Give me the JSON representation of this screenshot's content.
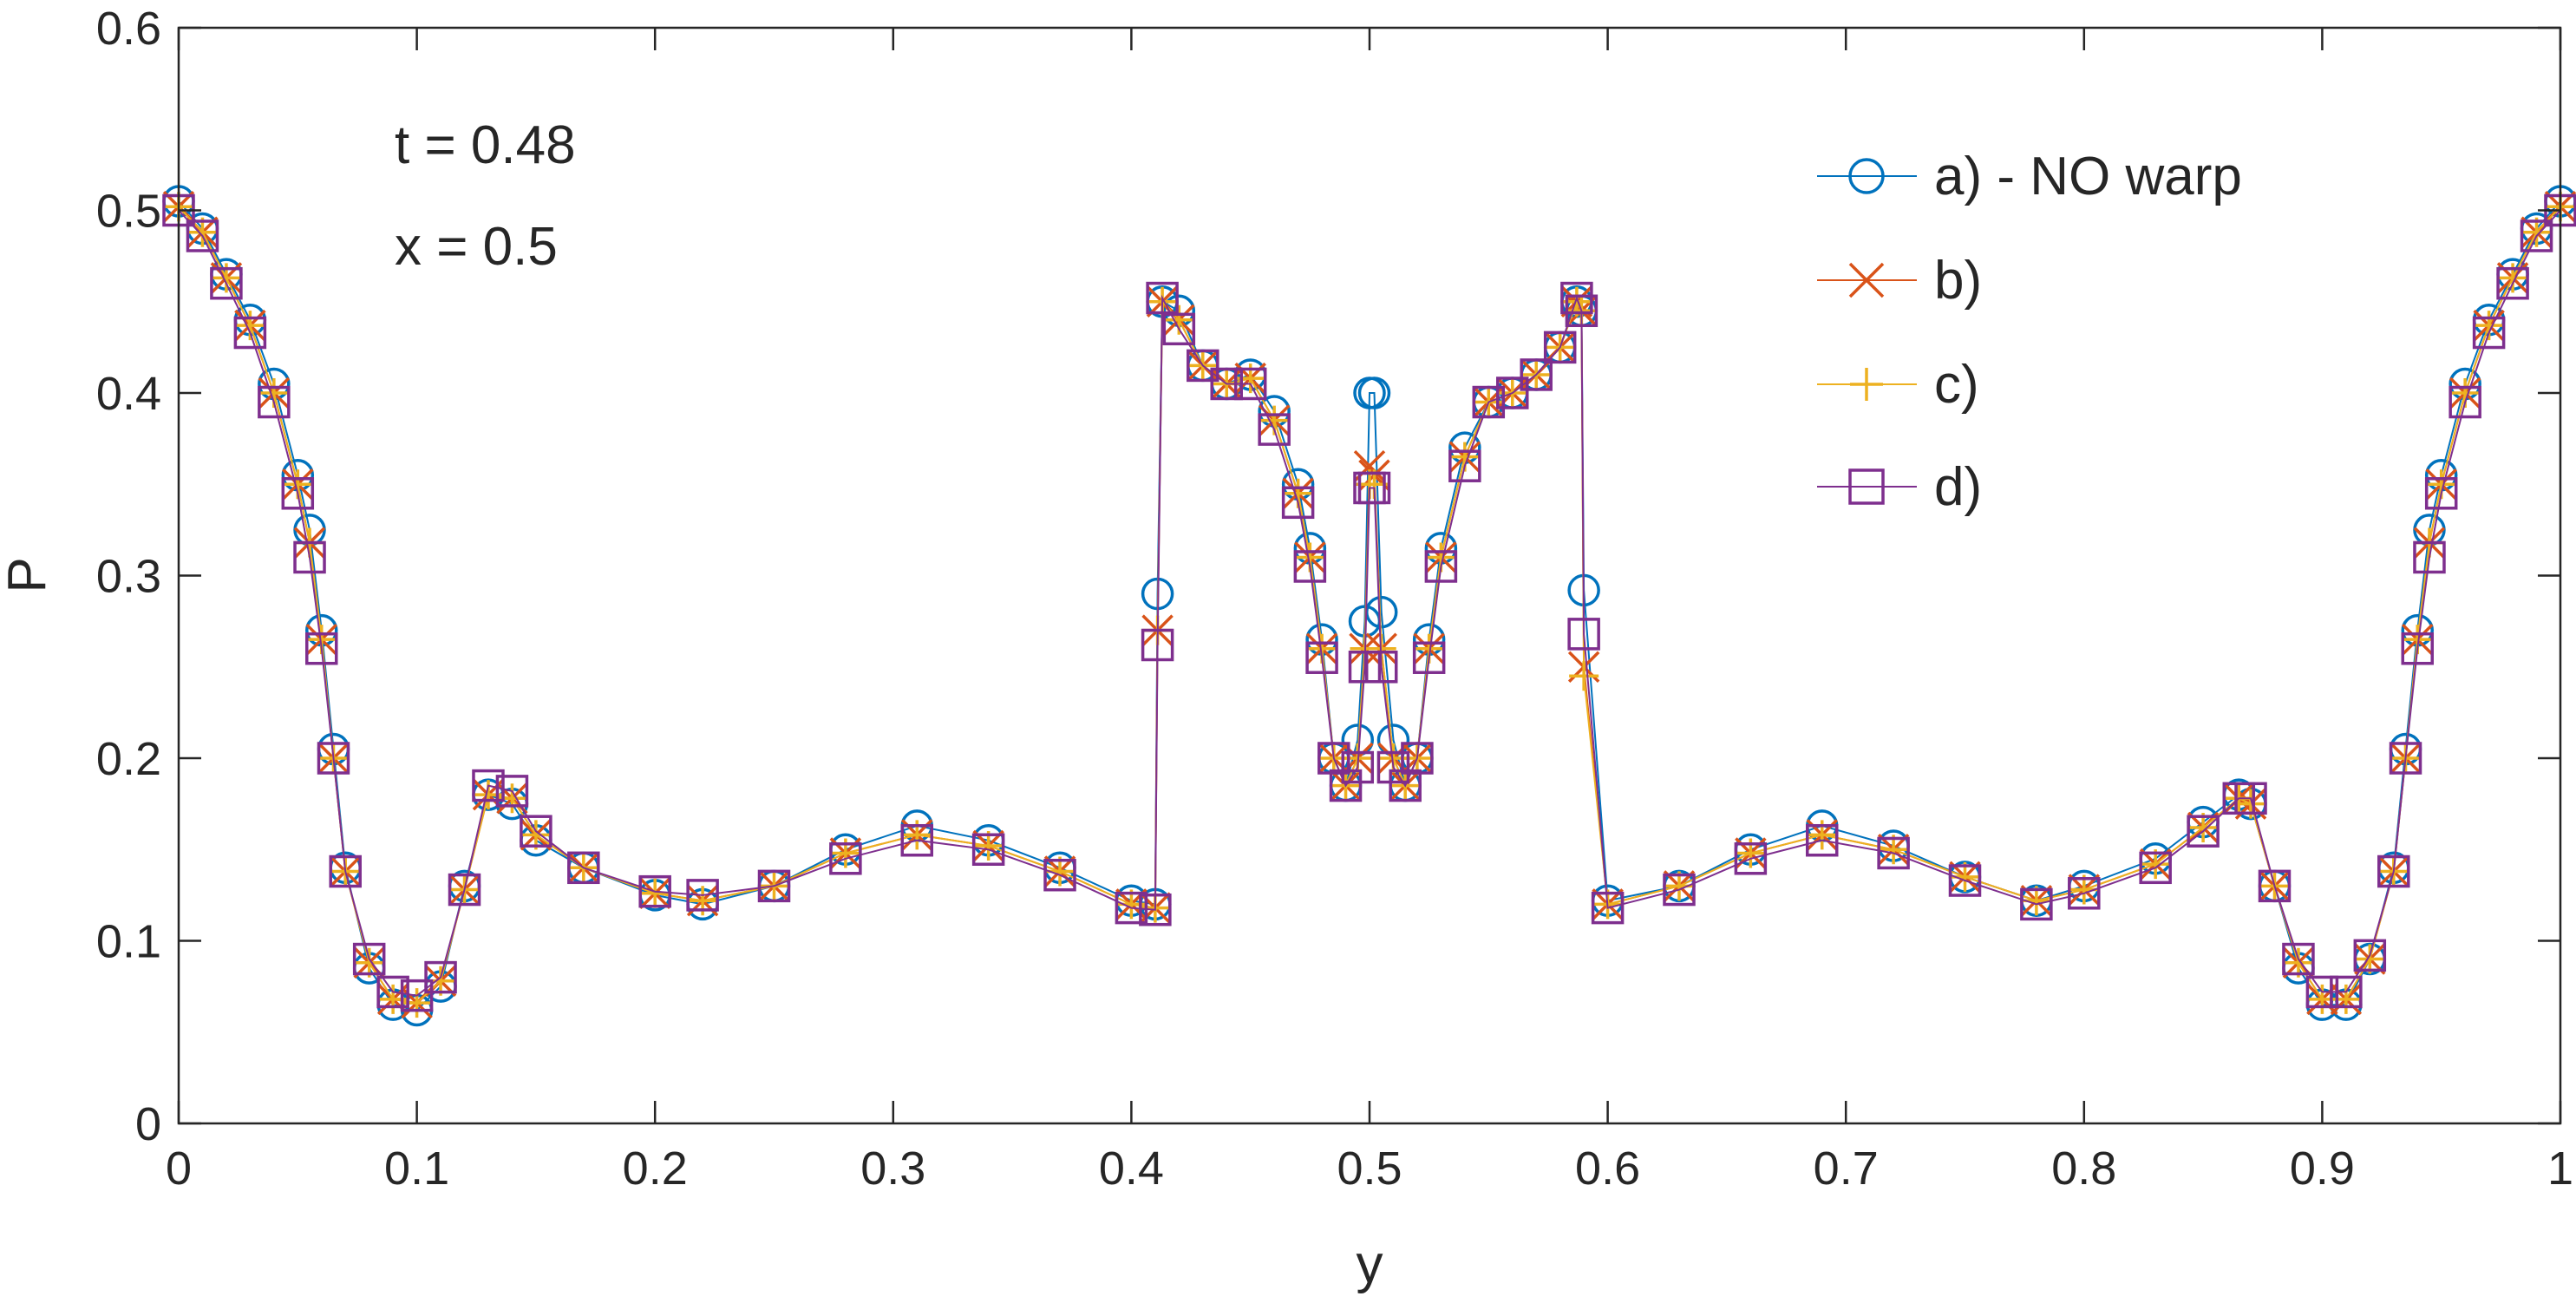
{
  "chart_data": {
    "type": "line",
    "title": "",
    "xlabel": "y",
    "ylabel": "P",
    "xlim": [
      0,
      1
    ],
    "ylim": [
      0,
      0.6
    ],
    "xticks": [
      "0",
      "0.1",
      "0.2",
      "0.3",
      "0.4",
      "0.5",
      "0.6",
      "0.7",
      "0.8",
      "0.9",
      "1"
    ],
    "xtick_values": [
      0,
      0.1,
      0.2,
      0.3,
      0.4,
      0.5,
      0.6,
      0.7,
      0.8,
      0.9,
      1
    ],
    "yticks": [
      "0",
      "0.1",
      "0.2",
      "0.3",
      "0.4",
      "0.5",
      "0.6"
    ],
    "ytick_values": [
      0,
      0.1,
      0.2,
      0.3,
      0.4,
      0.5,
      0.6
    ],
    "grid": false,
    "legend_position": "top-right",
    "annotations": [
      "t = 0.48",
      "x = 0.5"
    ],
    "series": [
      {
        "name": "a) - NO warp",
        "color": "#0072BD",
        "marker": "circle",
        "x": [
          0.0,
          0.01,
          0.02,
          0.03,
          0.04,
          0.05,
          0.055,
          0.06,
          0.065,
          0.07,
          0.08,
          0.09,
          0.1,
          0.11,
          0.12,
          0.13,
          0.14,
          0.15,
          0.17,
          0.2,
          0.22,
          0.25,
          0.28,
          0.31,
          0.34,
          0.37,
          0.4,
          0.41,
          0.411,
          0.413,
          0.42,
          0.43,
          0.44,
          0.45,
          0.46,
          0.47,
          0.475,
          0.48,
          0.485,
          0.49,
          0.495,
          0.498,
          0.5,
          0.502,
          0.505,
          0.51,
          0.515,
          0.52,
          0.525,
          0.53,
          0.54,
          0.55,
          0.56,
          0.57,
          0.58,
          0.587,
          0.589,
          0.59,
          0.6,
          0.63,
          0.66,
          0.69,
          0.72,
          0.75,
          0.78,
          0.8,
          0.83,
          0.85,
          0.865,
          0.87,
          0.88,
          0.89,
          0.9,
          0.91,
          0.92,
          0.93,
          0.935,
          0.94,
          0.945,
          0.95,
          0.96,
          0.97,
          0.98,
          0.99,
          1.0
        ],
        "values": [
          0.505,
          0.49,
          0.465,
          0.44,
          0.405,
          0.355,
          0.325,
          0.27,
          0.205,
          0.14,
          0.085,
          0.065,
          0.062,
          0.075,
          0.13,
          0.18,
          0.175,
          0.155,
          0.14,
          0.125,
          0.12,
          0.13,
          0.15,
          0.163,
          0.155,
          0.14,
          0.122,
          0.12,
          0.29,
          0.45,
          0.445,
          0.415,
          0.405,
          0.41,
          0.39,
          0.35,
          0.315,
          0.265,
          0.2,
          0.185,
          0.21,
          0.275,
          0.4,
          0.4,
          0.28,
          0.21,
          0.185,
          0.2,
          0.265,
          0.315,
          0.37,
          0.395,
          0.4,
          0.41,
          0.425,
          0.45,
          0.445,
          0.292,
          0.122,
          0.13,
          0.15,
          0.163,
          0.152,
          0.135,
          0.122,
          0.13,
          0.145,
          0.165,
          0.18,
          0.175,
          0.13,
          0.085,
          0.065,
          0.065,
          0.09,
          0.14,
          0.205,
          0.27,
          0.325,
          0.355,
          0.405,
          0.44,
          0.465,
          0.49,
          0.505
        ]
      },
      {
        "name": "b)",
        "color": "#D95319",
        "marker": "x",
        "x": [
          0.0,
          0.01,
          0.02,
          0.03,
          0.04,
          0.05,
          0.055,
          0.06,
          0.065,
          0.07,
          0.08,
          0.09,
          0.1,
          0.11,
          0.12,
          0.13,
          0.14,
          0.15,
          0.17,
          0.2,
          0.22,
          0.25,
          0.28,
          0.31,
          0.34,
          0.37,
          0.4,
          0.41,
          0.411,
          0.413,
          0.42,
          0.43,
          0.44,
          0.45,
          0.46,
          0.47,
          0.475,
          0.48,
          0.485,
          0.49,
          0.495,
          0.498,
          0.5,
          0.502,
          0.505,
          0.51,
          0.515,
          0.52,
          0.525,
          0.53,
          0.54,
          0.55,
          0.56,
          0.57,
          0.58,
          0.587,
          0.589,
          0.59,
          0.6,
          0.63,
          0.66,
          0.69,
          0.72,
          0.75,
          0.78,
          0.8,
          0.83,
          0.85,
          0.865,
          0.87,
          0.88,
          0.89,
          0.9,
          0.91,
          0.92,
          0.93,
          0.935,
          0.94,
          0.945,
          0.95,
          0.96,
          0.97,
          0.98,
          0.99,
          1.0
        ],
        "values": [
          0.502,
          0.488,
          0.463,
          0.437,
          0.4,
          0.35,
          0.318,
          0.265,
          0.2,
          0.138,
          0.088,
          0.068,
          0.066,
          0.078,
          0.128,
          0.18,
          0.178,
          0.158,
          0.14,
          0.126,
          0.122,
          0.13,
          0.148,
          0.158,
          0.152,
          0.138,
          0.12,
          0.118,
          0.27,
          0.45,
          0.44,
          0.415,
          0.405,
          0.408,
          0.385,
          0.345,
          0.31,
          0.26,
          0.2,
          0.185,
          0.2,
          0.26,
          0.36,
          0.355,
          0.26,
          0.2,
          0.185,
          0.2,
          0.26,
          0.31,
          0.365,
          0.395,
          0.4,
          0.41,
          0.425,
          0.45,
          0.445,
          0.25,
          0.12,
          0.13,
          0.148,
          0.158,
          0.15,
          0.135,
          0.122,
          0.128,
          0.142,
          0.162,
          0.178,
          0.175,
          0.13,
          0.088,
          0.068,
          0.068,
          0.09,
          0.138,
          0.2,
          0.265,
          0.318,
          0.35,
          0.4,
          0.437,
          0.463,
          0.488,
          0.502
        ]
      },
      {
        "name": "c)",
        "color": "#EDB120",
        "marker": "plus",
        "x": [
          0.0,
          0.01,
          0.02,
          0.03,
          0.04,
          0.05,
          0.055,
          0.06,
          0.065,
          0.07,
          0.08,
          0.09,
          0.1,
          0.11,
          0.12,
          0.13,
          0.14,
          0.15,
          0.17,
          0.2,
          0.22,
          0.25,
          0.28,
          0.31,
          0.34,
          0.37,
          0.4,
          0.41,
          0.411,
          0.413,
          0.42,
          0.43,
          0.44,
          0.45,
          0.46,
          0.47,
          0.475,
          0.48,
          0.485,
          0.49,
          0.495,
          0.498,
          0.5,
          0.502,
          0.505,
          0.51,
          0.515,
          0.52,
          0.525,
          0.53,
          0.54,
          0.55,
          0.56,
          0.57,
          0.58,
          0.587,
          0.589,
          0.59,
          0.6,
          0.63,
          0.66,
          0.69,
          0.72,
          0.75,
          0.78,
          0.8,
          0.83,
          0.85,
          0.865,
          0.87,
          0.88,
          0.89,
          0.9,
          0.91,
          0.92,
          0.93,
          0.935,
          0.94,
          0.945,
          0.95,
          0.96,
          0.97,
          0.98,
          0.99,
          1.0
        ],
        "values": [
          0.502,
          0.488,
          0.463,
          0.437,
          0.4,
          0.35,
          0.318,
          0.265,
          0.2,
          0.138,
          0.088,
          0.068,
          0.066,
          0.078,
          0.128,
          0.18,
          0.178,
          0.158,
          0.14,
          0.126,
          0.122,
          0.13,
          0.148,
          0.158,
          0.152,
          0.138,
          0.12,
          0.118,
          0.27,
          0.45,
          0.44,
          0.415,
          0.405,
          0.408,
          0.385,
          0.345,
          0.31,
          0.26,
          0.2,
          0.185,
          0.2,
          0.26,
          0.35,
          0.35,
          0.26,
          0.2,
          0.185,
          0.2,
          0.26,
          0.31,
          0.365,
          0.395,
          0.4,
          0.41,
          0.425,
          0.45,
          0.445,
          0.245,
          0.12,
          0.13,
          0.148,
          0.158,
          0.15,
          0.135,
          0.122,
          0.128,
          0.142,
          0.162,
          0.178,
          0.175,
          0.13,
          0.088,
          0.068,
          0.068,
          0.09,
          0.138,
          0.2,
          0.265,
          0.318,
          0.35,
          0.4,
          0.437,
          0.463,
          0.488,
          0.502
        ]
      },
      {
        "name": "d)",
        "color": "#7E2F8E",
        "marker": "square",
        "x": [
          0.0,
          0.01,
          0.02,
          0.03,
          0.04,
          0.05,
          0.055,
          0.06,
          0.065,
          0.07,
          0.08,
          0.09,
          0.1,
          0.11,
          0.12,
          0.13,
          0.14,
          0.15,
          0.17,
          0.2,
          0.22,
          0.25,
          0.28,
          0.31,
          0.34,
          0.37,
          0.4,
          0.41,
          0.411,
          0.413,
          0.42,
          0.43,
          0.44,
          0.45,
          0.46,
          0.47,
          0.475,
          0.48,
          0.485,
          0.49,
          0.495,
          0.498,
          0.5,
          0.502,
          0.505,
          0.51,
          0.515,
          0.52,
          0.525,
          0.53,
          0.54,
          0.55,
          0.56,
          0.57,
          0.58,
          0.587,
          0.589,
          0.59,
          0.6,
          0.63,
          0.66,
          0.69,
          0.72,
          0.75,
          0.78,
          0.8,
          0.83,
          0.85,
          0.865,
          0.87,
          0.88,
          0.89,
          0.9,
          0.91,
          0.92,
          0.93,
          0.935,
          0.94,
          0.945,
          0.95,
          0.96,
          0.97,
          0.98,
          0.99,
          1.0
        ],
        "values": [
          0.5,
          0.486,
          0.46,
          0.433,
          0.395,
          0.345,
          0.31,
          0.26,
          0.2,
          0.138,
          0.09,
          0.072,
          0.07,
          0.08,
          0.128,
          0.185,
          0.182,
          0.16,
          0.14,
          0.127,
          0.125,
          0.13,
          0.145,
          0.155,
          0.15,
          0.136,
          0.118,
          0.117,
          0.262,
          0.452,
          0.435,
          0.415,
          0.405,
          0.405,
          0.38,
          0.34,
          0.305,
          0.255,
          0.2,
          0.185,
          0.195,
          0.25,
          0.348,
          0.348,
          0.25,
          0.195,
          0.185,
          0.2,
          0.255,
          0.305,
          0.36,
          0.395,
          0.4,
          0.41,
          0.425,
          0.452,
          0.445,
          0.268,
          0.118,
          0.128,
          0.145,
          0.155,
          0.148,
          0.133,
          0.12,
          0.126,
          0.14,
          0.16,
          0.178,
          0.178,
          0.13,
          0.09,
          0.072,
          0.072,
          0.092,
          0.138,
          0.2,
          0.26,
          0.31,
          0.345,
          0.395,
          0.433,
          0.46,
          0.486,
          0.5
        ]
      }
    ]
  }
}
